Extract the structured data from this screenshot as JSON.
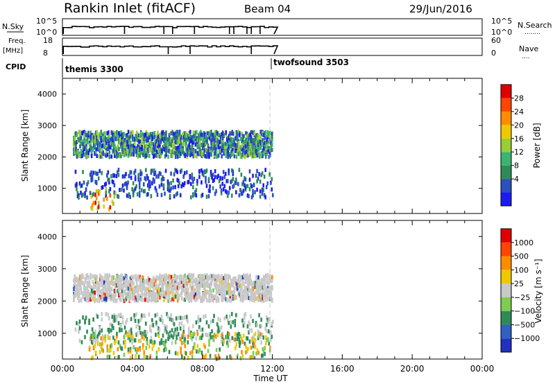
{
  "header": {
    "station": "Rankin Inlet (fitACF)",
    "beam": "Beam 04",
    "date": "29/Jun/2016"
  },
  "strips": {
    "nsky": {
      "label": "N.Sky",
      "left_ticks": [
        "10^5",
        "10^0"
      ],
      "right_ticks": [
        "10^5",
        "10^0"
      ],
      "right_label": "N.Search",
      "right_legend": "........"
    },
    "freq": {
      "label_line1": "Freq.",
      "label_line2": "[MHz]",
      "left_ticks": [
        "18",
        "8"
      ],
      "right_ticks": [
        "60",
        "0"
      ],
      "right_label": "Nave",
      "right_legend": "...."
    },
    "cpid": {
      "label": "CPID",
      "programs": [
        {
          "name": "themis 3300"
        },
        {
          "name": "twofsound 3503"
        }
      ]
    }
  },
  "chart_data": [
    {
      "type": "heatmap",
      "panel": "power",
      "ylabel": "Slant Range [km]",
      "yticks": [
        "4000",
        "3000",
        "2000",
        "1000"
      ],
      "ylim": [
        200,
        4500
      ],
      "xlim_hours": [
        0,
        24
      ],
      "colorbar": {
        "label": "Power [dB]",
        "ticks": [
          "28",
          "24",
          "20",
          "16",
          "12",
          "8",
          "4"
        ],
        "colors": [
          "#1b1bf0",
          "#2a4fc0",
          "#2e8b57",
          "#3cb371",
          "#9acd32",
          "#f0c800",
          "#ff8c00",
          "#ff4500",
          "#e00000"
        ]
      },
      "features": [
        {
          "name": "main echo band",
          "t_start_h": 0.6,
          "t_end_h": 12.0,
          "range_km": [
            2000,
            2800
          ]
        },
        {
          "name": "mid echo patches",
          "t_start_h": 0.7,
          "t_end_h": 12.0,
          "range_km": [
            700,
            1600
          ]
        },
        {
          "name": "near range high power",
          "t_start_h": 1.6,
          "t_end_h": 3.0,
          "range_km": [
            250,
            1000
          ]
        }
      ]
    },
    {
      "type": "heatmap",
      "panel": "velocity",
      "ylabel": "Slant Range [km]",
      "yticks": [
        "4000",
        "3000",
        "2000",
        "1000"
      ],
      "ylim": [
        200,
        4500
      ],
      "xlim_hours": [
        0,
        24
      ],
      "colorbar": {
        "label": "Velocity [m s⁻¹]",
        "ticks": [
          "1000",
          "500",
          "100",
          "25",
          "−25",
          "−100",
          "−500",
          "−1000"
        ],
        "colors": [
          "#2030c0",
          "#3060c0",
          "#2e8b57",
          "#7ccd50",
          "#c8c8c8",
          "#f0c800",
          "#ff8c00",
          "#ff4500",
          "#e00000"
        ]
      },
      "features": [
        {
          "name": "main echo band (ground scatter)",
          "t_start_h": 0.6,
          "t_end_h": 12.0,
          "range_km": [
            2000,
            2800
          ]
        },
        {
          "name": "mid echo patches",
          "t_start_h": 0.7,
          "t_end_h": 12.0,
          "range_km": [
            700,
            1600
          ]
        },
        {
          "name": "near range",
          "t_start_h": 1.5,
          "t_end_h": 12.0,
          "range_km": [
            200,
            1000
          ]
        }
      ]
    }
  ],
  "xaxis": {
    "label": "Time UT",
    "ticks": [
      "00:00",
      "04:00",
      "08:00",
      "12:00",
      "16:00",
      "20:00",
      "00:00"
    ]
  },
  "colors": {
    "grid": "#000000",
    "marker_line": "#c8c8c8"
  }
}
